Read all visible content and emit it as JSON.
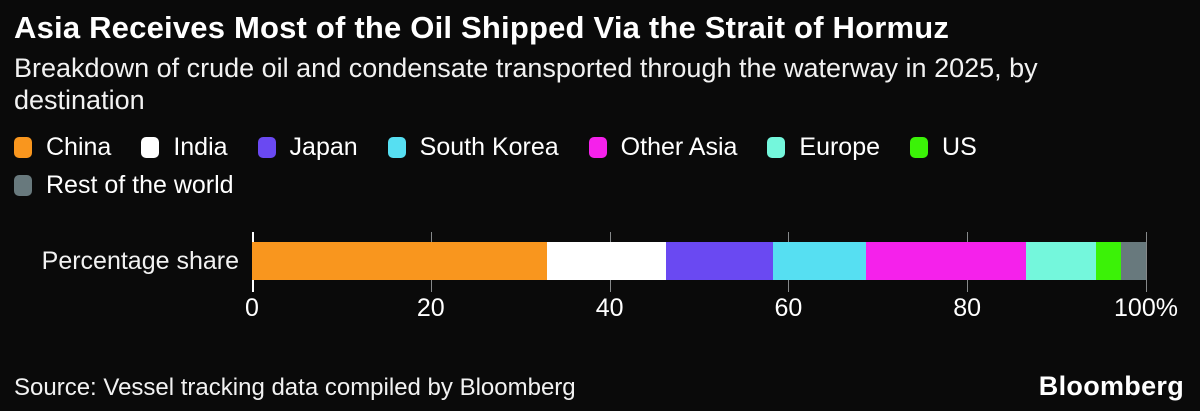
{
  "header": {
    "title": "Asia Receives Most of the Oil Shipped Via the Strait of Hormuz",
    "subtitle": "Breakdown of crude oil and condensate transported through the waterway in 2025, by destination"
  },
  "chart_data": {
    "type": "bar",
    "orientation": "horizontal-stacked",
    "title": "Asia Receives Most of the Oil Shipped Via the Strait of Hormuz",
    "subtitle": "Breakdown of crude oil and condensate transported through the waterway in 2025, by destination",
    "bar_label": "Percentage share",
    "xlabel": "",
    "ylabel": "",
    "xlim": [
      0,
      100
    ],
    "x_ticks": [
      "0",
      "20",
      "40",
      "60",
      "80",
      "100%"
    ],
    "grid": "tick marks above and below bar at every 20",
    "legend_position": "top",
    "series": [
      {
        "name": "China",
        "value": 33.0,
        "color": "#F9961E"
      },
      {
        "name": "India",
        "value": 13.3,
        "color": "#FFFFFF"
      },
      {
        "name": "Japan",
        "value": 12.0,
        "color": "#6A49F2"
      },
      {
        "name": "South Korea",
        "value": 10.4,
        "color": "#56DFF2"
      },
      {
        "name": "Other Asia",
        "value": 17.9,
        "color": "#F521EB"
      },
      {
        "name": "Europe",
        "value": 7.8,
        "color": "#74F7DC"
      },
      {
        "name": "US",
        "value": 2.8,
        "color": "#3BF207"
      },
      {
        "name": "Rest of the world",
        "value": 2.8,
        "color": "#68797D"
      }
    ]
  },
  "footer": {
    "source": "Source: Vessel tracking data compiled by Bloomberg",
    "brand": "Bloomberg"
  },
  "colors": {
    "background": "#0A0A0A",
    "text": "#FFFFFF",
    "tick_line": "#86898A",
    "zero_axis_line": "#FFFFFF"
  }
}
